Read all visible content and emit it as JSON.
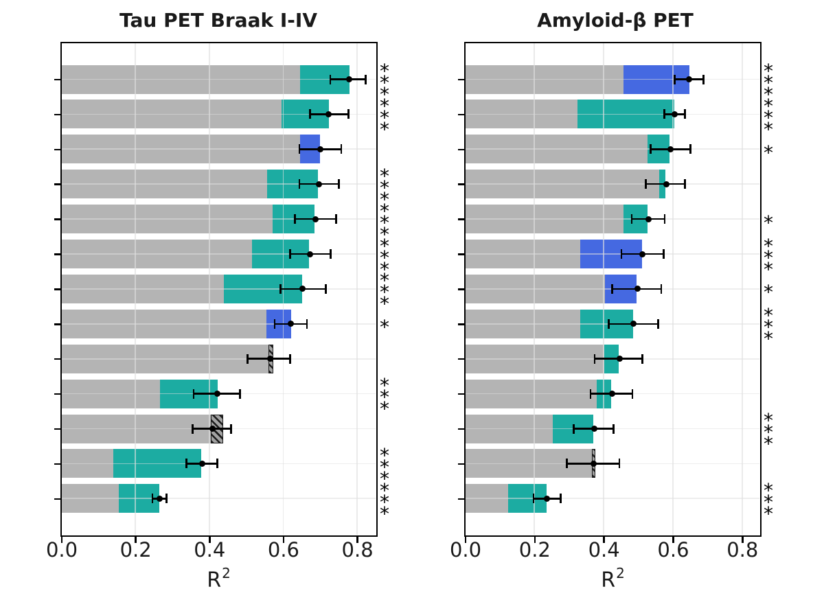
{
  "figure": {
    "background": "#ffffff"
  },
  "colors": {
    "base_model_gray": "#b4b4b4",
    "improvement_teal": "#1caca2",
    "improvement_blue": "#4569e1",
    "hatch_face_gray": "#a2a2a2",
    "hatch_stripe_black": "#0a0a0a",
    "error_bar_black": "#000000",
    "grid_light_gray": "#e6e6e6",
    "spine_black": "#000000"
  },
  "chart_data": [
    {
      "type": "bar",
      "orientation": "horizontal",
      "title": "Tau PET Braak I-IV",
      "xlabel_base": "R",
      "xlabel_sup": "2",
      "xlim": [
        0,
        0.849
      ],
      "xticks": [
        "0.0",
        "0.2",
        "0.4",
        "0.6",
        "0.8"
      ],
      "xtick_values": [
        0,
        0.2,
        0.4,
        0.6,
        0.8
      ],
      "grid": true,
      "legend": "none",
      "significance_position": "right-margin",
      "bars": [
        {
          "base": 0.645,
          "total": 0.779,
          "segment": "teal",
          "point": 0.778,
          "ci": [
            0.727,
            0.823
          ],
          "stars": "***"
        },
        {
          "base": 0.596,
          "total": 0.723,
          "segment": "teal",
          "point": 0.723,
          "ci": [
            0.672,
            0.777
          ],
          "stars": "***"
        },
        {
          "base": 0.646,
          "total": 0.7,
          "segment": "blue",
          "point": 0.7,
          "ci": [
            0.644,
            0.757
          ],
          "stars": ""
        },
        {
          "base": 0.557,
          "total": 0.694,
          "segment": "teal",
          "point": 0.696,
          "ci": [
            0.644,
            0.75
          ],
          "stars": "***"
        },
        {
          "base": 0.572,
          "total": 0.685,
          "segment": "teal",
          "point": 0.687,
          "ci": [
            0.632,
            0.743
          ],
          "stars": "***"
        },
        {
          "base": 0.515,
          "total": 0.67,
          "segment": "teal",
          "point": 0.672,
          "ci": [
            0.619,
            0.728
          ],
          "stars": "***"
        },
        {
          "base": 0.439,
          "total": 0.651,
          "segment": "teal",
          "point": 0.653,
          "ci": [
            0.593,
            0.715
          ],
          "stars": "***"
        },
        {
          "base": 0.555,
          "total": 0.621,
          "segment": "blue",
          "point": 0.621,
          "ci": [
            0.577,
            0.664
          ],
          "stars": "*"
        },
        {
          "base": 0.56,
          "total": 0.573,
          "segment": "hatched",
          "point": 0.565,
          "ci": [
            0.504,
            0.619
          ],
          "stars": ""
        },
        {
          "base": 0.266,
          "total": 0.422,
          "segment": "teal",
          "point": 0.422,
          "ci": [
            0.358,
            0.483
          ],
          "stars": "***"
        },
        {
          "base": 0.404,
          "total": 0.437,
          "segment": "hatched",
          "point": 0.408,
          "ci": [
            0.355,
            0.459
          ],
          "stars": ""
        },
        {
          "base": 0.14,
          "total": 0.379,
          "segment": "teal",
          "point": 0.381,
          "ci": [
            0.338,
            0.422
          ],
          "stars": "***"
        },
        {
          "base": 0.156,
          "total": 0.265,
          "segment": "teal",
          "point": 0.265,
          "ci": [
            0.246,
            0.284
          ],
          "stars": "***"
        }
      ]
    },
    {
      "type": "bar",
      "orientation": "horizontal",
      "title": "Amyloid-β PET",
      "xlabel_base": "R",
      "xlabel_sup": "2",
      "xlim": [
        0,
        0.849
      ],
      "xticks": [
        "0.0",
        "0.2",
        "0.4",
        "0.6",
        "0.8"
      ],
      "xtick_values": [
        0,
        0.2,
        0.4,
        0.6,
        0.8
      ],
      "grid": true,
      "legend": "none",
      "significance_position": "right-margin",
      "bars": [
        {
          "base": 0.458,
          "total": 0.647,
          "segment": "blue",
          "point": 0.647,
          "ci": [
            0.605,
            0.688
          ],
          "stars": "***"
        },
        {
          "base": 0.325,
          "total": 0.605,
          "segment": "teal",
          "point": 0.605,
          "ci": [
            0.575,
            0.635
          ],
          "stars": "***"
        },
        {
          "base": 0.527,
          "total": 0.59,
          "segment": "teal",
          "point": 0.593,
          "ci": [
            0.536,
            0.651
          ],
          "stars": "*"
        },
        {
          "base": 0.56,
          "total": 0.578,
          "segment": "teal",
          "point": 0.581,
          "ci": [
            0.522,
            0.635
          ],
          "stars": ""
        },
        {
          "base": 0.458,
          "total": 0.527,
          "segment": "teal",
          "point": 0.529,
          "ci": [
            0.481,
            0.576
          ],
          "stars": "*"
        },
        {
          "base": 0.332,
          "total": 0.51,
          "segment": "blue",
          "point": 0.511,
          "ci": [
            0.451,
            0.573
          ],
          "stars": "***"
        },
        {
          "base": 0.403,
          "total": 0.495,
          "segment": "blue",
          "point": 0.497,
          "ci": [
            0.424,
            0.566
          ],
          "stars": "*"
        },
        {
          "base": 0.332,
          "total": 0.486,
          "segment": "teal",
          "point": 0.486,
          "ci": [
            0.415,
            0.557
          ],
          "stars": "***"
        },
        {
          "base": 0.401,
          "total": 0.444,
          "segment": "teal",
          "point": 0.446,
          "ci": [
            0.374,
            0.512
          ],
          "stars": ""
        },
        {
          "base": 0.38,
          "total": 0.421,
          "segment": "teal",
          "point": 0.424,
          "ci": [
            0.362,
            0.483
          ],
          "stars": ""
        },
        {
          "base": 0.253,
          "total": 0.37,
          "segment": "teal",
          "point": 0.372,
          "ci": [
            0.314,
            0.428
          ],
          "stars": "***"
        },
        {
          "base": 0.366,
          "total": 0.375,
          "segment": "hatched",
          "point": 0.37,
          "ci": [
            0.294,
            0.445
          ],
          "stars": ""
        },
        {
          "base": 0.123,
          "total": 0.235,
          "segment": "teal",
          "point": 0.237,
          "ci": [
            0.197,
            0.276
          ],
          "stars": "***"
        }
      ]
    }
  ]
}
